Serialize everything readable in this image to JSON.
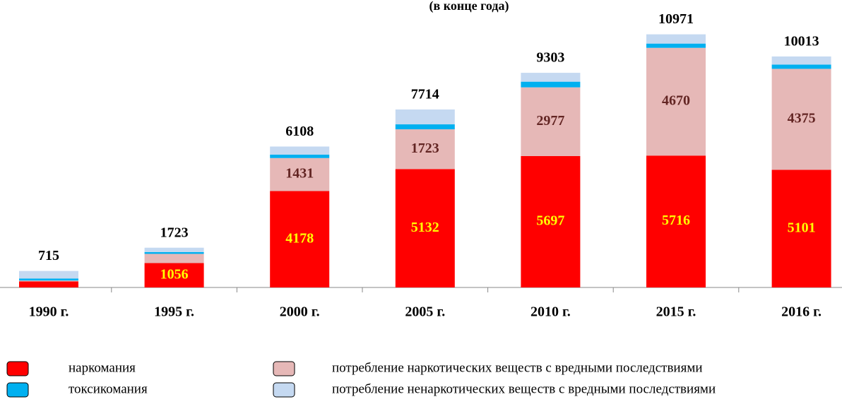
{
  "chart_data": {
    "type": "stacked-bar",
    "title": "(в конце года)",
    "categories": [
      "1990 г.",
      "1995 г.",
      "2000 г.",
      "2005 г.",
      "2010 г.",
      "2015 г.",
      "2016 г."
    ],
    "series": [
      {
        "name": "наркомания",
        "color": "#ff0000",
        "values": [
          260,
          1056,
          4178,
          5132,
          5697,
          5716,
          5101
        ]
      },
      {
        "name": "потребление наркотических веществ с вредными последствиями",
        "color": "#e6b8b7",
        "values": [
          40,
          400,
          1431,
          1723,
          2977,
          4670,
          4375
        ]
      },
      {
        "name": "токсикомания",
        "color": "#00b0f0",
        "values": [
          90,
          80,
          150,
          215,
          245,
          185,
          185
        ]
      },
      {
        "name": "потребление ненаркотических веществ с вредными последствиями",
        "color": "#c5d9f1",
        "values": [
          325,
          187,
          349,
          644,
          384,
          400,
          352
        ]
      }
    ],
    "totals": [
      715,
      1723,
      6108,
      7714,
      9303,
      10971,
      10013
    ],
    "ylim": [
      0,
      12000
    ],
    "legend": "bottom"
  }
}
